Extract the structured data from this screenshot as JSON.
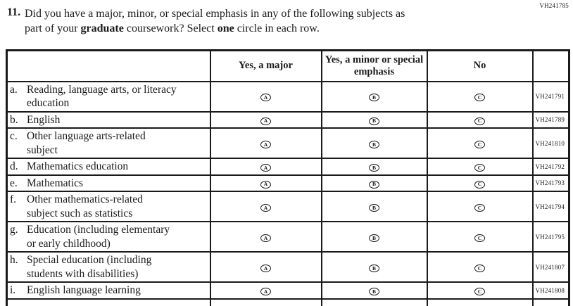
{
  "form_code": "VH241785",
  "question": {
    "number": "11.",
    "lines": [
      [
        {
          "t": "Did you have a major, minor, or special emphasis in any of the following subjects as",
          "b": false
        }
      ],
      [
        {
          "t": "part of your ",
          "b": false
        },
        {
          "t": "graduate",
          "b": true
        },
        {
          "t": " coursework? Select ",
          "b": false
        },
        {
          "t": "one",
          "b": true
        },
        {
          "t": " circle in each row.",
          "b": false
        }
      ]
    ]
  },
  "table": {
    "columns": [
      "Yes, a major",
      "Yes, a minor or special emphasis",
      "No"
    ],
    "option_letters": [
      "A",
      "B",
      "C"
    ],
    "option_names": [
      "option-circle-yes-major",
      "option-circle-yes-minor-special",
      "option-circle-no"
    ],
    "rows": [
      {
        "letter": "a.",
        "lines": [
          "Reading, language arts, or literacy",
          "education"
        ],
        "code": "VH241791"
      },
      {
        "letter": "b.",
        "lines": [
          "English"
        ],
        "code": "VH241789"
      },
      {
        "letter": "c.",
        "lines": [
          "Other language arts-related",
          "subject"
        ],
        "code": "VH241810"
      },
      {
        "letter": "d.",
        "lines": [
          "Mathematics education"
        ],
        "code": "VH241792"
      },
      {
        "letter": "e.",
        "lines": [
          "Mathematics"
        ],
        "code": "VH241793"
      },
      {
        "letter": "f.",
        "lines": [
          "Other mathematics-related",
          "subject such as statistics"
        ],
        "code": "VH241794"
      },
      {
        "letter": "g.",
        "lines": [
          "Education (including elementary",
          "or early childhood)"
        ],
        "code": "VH241795"
      },
      {
        "letter": "h.",
        "lines": [
          "Special education (including",
          "students with disabilities)"
        ],
        "code": "VH241807"
      },
      {
        "letter": "i.",
        "lines": [
          "English language learning"
        ],
        "code": "VH241808"
      }
    ]
  },
  "colors": {
    "ink": "#1a1a1a",
    "paper": "#ffffff"
  }
}
